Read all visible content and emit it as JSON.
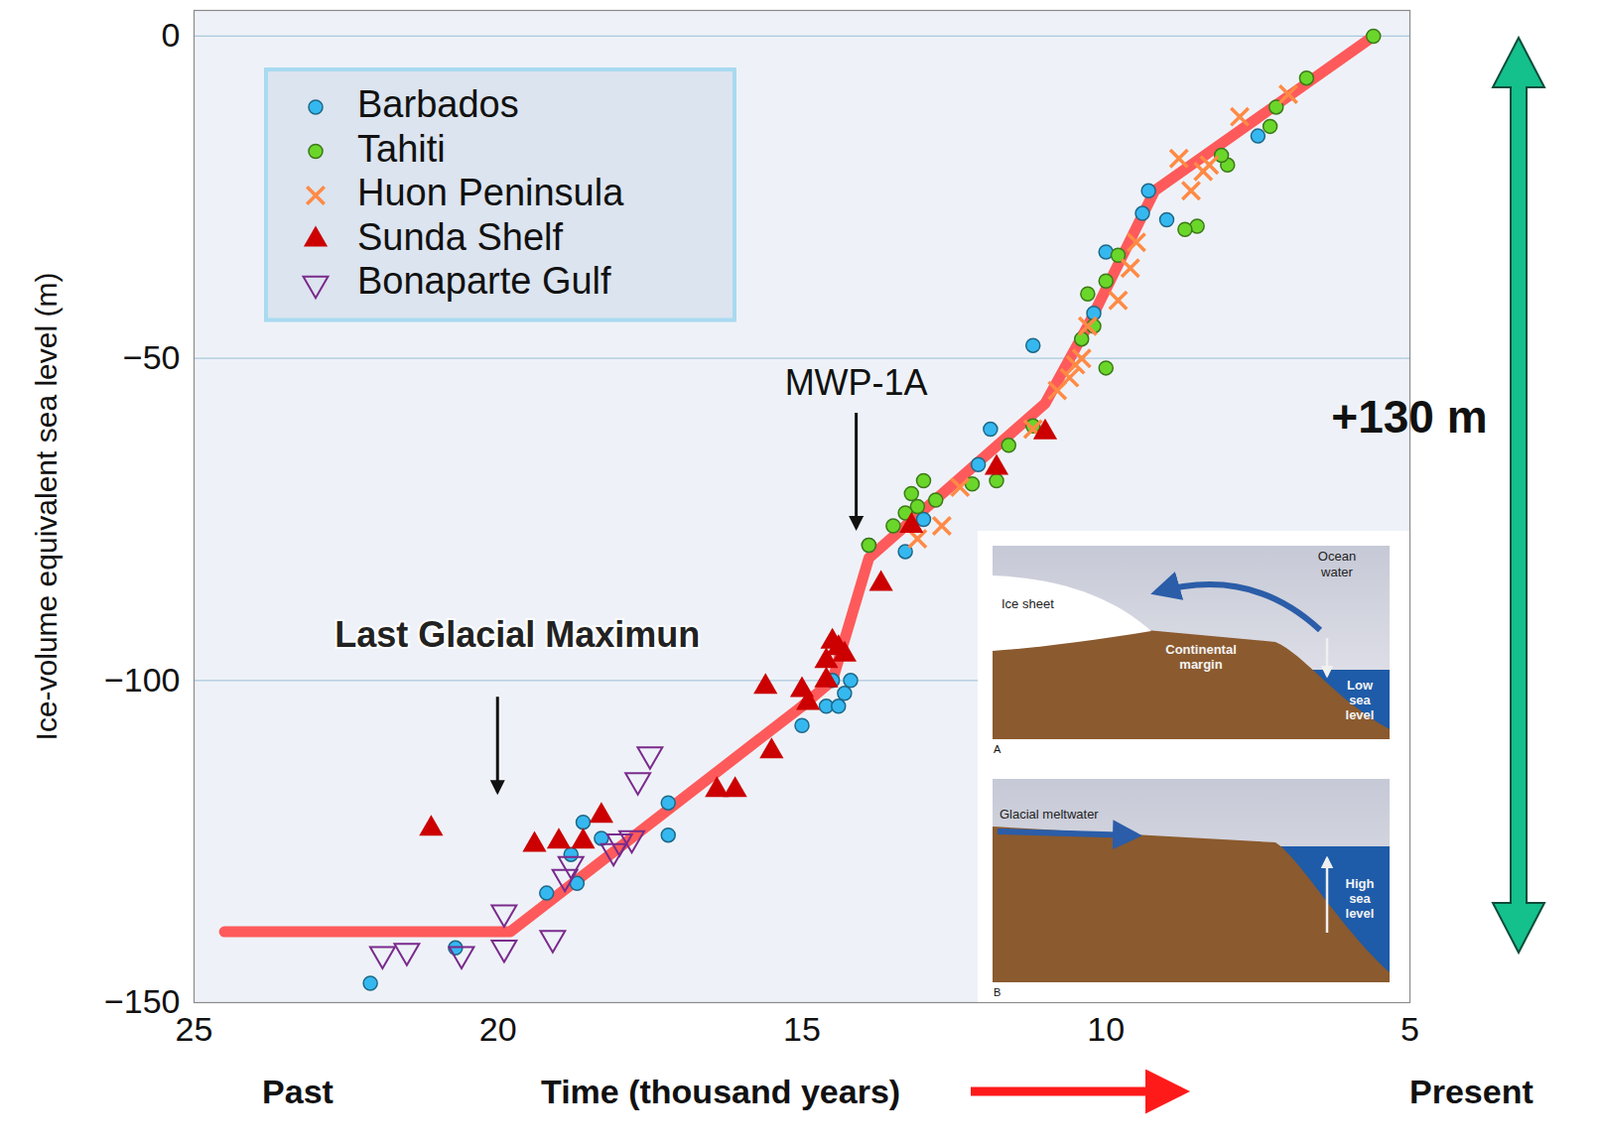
{
  "chart_data": {
    "type": "scatter",
    "ylabel": "Ice-volume equivalent sea level (m)",
    "xlabel": "Time (thousand years)",
    "x_direction_labels": [
      "Past",
      "Present"
    ],
    "xlim": [
      25,
      5
    ],
    "xticks": [
      25,
      20,
      15,
      10,
      5
    ],
    "ylim": [
      -150,
      4
    ],
    "yticks": [
      0,
      -50,
      -100,
      -150
    ],
    "grid": true,
    "legend": "top-left",
    "series": [
      {
        "name": "Barbados",
        "color": "#35b8f0",
        "marker": "circle",
        "x": [
          22.1,
          20.7,
          19.2,
          18.8,
          18.7,
          18.6,
          18.3,
          17.2,
          17.2,
          15.0,
          14.6,
          14.5,
          14.4,
          14.3,
          14.2,
          13.9,
          13.3,
          13.0,
          12.1,
          11.9,
          11.2,
          10.2,
          10.0,
          9.4,
          9.3,
          9.0,
          7.5
        ],
        "values": [
          -147,
          -141.5,
          -133,
          -127,
          -131.5,
          -122,
          -124.5,
          -119,
          -124,
          -107,
          -104,
          -100,
          -104,
          -102,
          -100,
          -79,
          -80,
          -75,
          -66.5,
          -61,
          -48,
          -43,
          -33.5,
          -27.5,
          -24,
          -28.5,
          -15.5
        ]
      },
      {
        "name": "Tahiti",
        "color": "#6ad62a",
        "marker": "circle",
        "x": [
          5.6,
          6.7,
          7.2,
          7.3,
          8.0,
          8.1,
          8.5,
          8.7,
          9.8,
          10.0,
          10.0,
          10.2,
          10.3,
          10.4,
          11.2,
          11.6,
          11.8,
          12.2,
          12.8,
          13.0,
          13.1,
          13.2,
          13.3,
          13.5,
          13.9
        ],
        "values": [
          0,
          -6.5,
          -11,
          -14,
          -20,
          -18.5,
          -29.5,
          -30,
          -34,
          -38,
          -51.5,
          -45,
          -40,
          -47,
          -60.5,
          -63.5,
          -69,
          -69.5,
          -72,
          -69,
          -73,
          -71,
          -74,
          -76,
          -79
        ]
      },
      {
        "name": "Huon Peninsula",
        "color": "#ff8a45",
        "marker": "x",
        "x": [
          7.0,
          7.8,
          8.3,
          8.4,
          8.6,
          8.8,
          9.5,
          9.6,
          9.8,
          10.3,
          10.4,
          10.5,
          10.6,
          10.8,
          11.2,
          12.4,
          12.7,
          13.1
        ],
        "values": [
          -9,
          -12.5,
          -20,
          -21,
          -24,
          -19,
          -32,
          -36,
          -41,
          -45,
          -50,
          -51,
          -53,
          -55,
          -61,
          -70,
          -76,
          -78
        ]
      },
      {
        "name": "Sunda Shelf",
        "color": "#cc0000",
        "marker": "triangle",
        "x": [
          21.1,
          19.4,
          19.0,
          18.6,
          18.3,
          16.4,
          16.1,
          15.6,
          15.5,
          15.0,
          14.9,
          14.6,
          14.6,
          14.5,
          14.4,
          14.3,
          13.7,
          13.2,
          11.8,
          11.0
        ],
        "values": [
          -123,
          -125.5,
          -125,
          -125,
          -121,
          -117,
          -117,
          -101,
          -111,
          -101.5,
          -103.5,
          -97,
          -100,
          -94,
          -95,
          -96,
          -85,
          -76,
          -67,
          -61.5
        ]
      },
      {
        "name": "Bonaparte Gulf",
        "color": "#7a2a8c",
        "marker": "triangle-down",
        "x": [
          21.9,
          21.5,
          20.6,
          19.9,
          19.9,
          19.1,
          18.9,
          18.8,
          18.1,
          18.0,
          17.8,
          17.7,
          17.5
        ],
        "values": [
          -142.5,
          -142,
          -142.5,
          -136,
          -141.5,
          -140,
          -130.5,
          -128.5,
          -126.5,
          -125,
          -124.5,
          -115.5,
          -111.5
        ]
      },
      {
        "type": "line",
        "color": "#ff4d4d",
        "x": [
          24.5,
          19.8,
          15.0,
          14.5,
          13.9,
          11.0,
          10.3,
          9.2,
          5.6
        ],
        "values": [
          -139,
          -139,
          -104,
          -100,
          -81,
          -57,
          -45,
          -24,
          0
        ]
      }
    ],
    "annotations": [
      {
        "text": "MWP-1A",
        "x": 14.1,
        "y": -77
      },
      {
        "text": "Last Glacial Maximun",
        "x": 20,
        "y": -118
      }
    ],
    "range_annotation": {
      "text": "+130 m"
    },
    "inset": {
      "panels": [
        {
          "label": "A",
          "texts": [
            "Ocean water",
            "Ice sheet",
            "Continental margin",
            "Low sea level"
          ]
        },
        {
          "label": "B",
          "texts": [
            "Glacial meltwater",
            "High sea level"
          ]
        }
      ]
    }
  }
}
